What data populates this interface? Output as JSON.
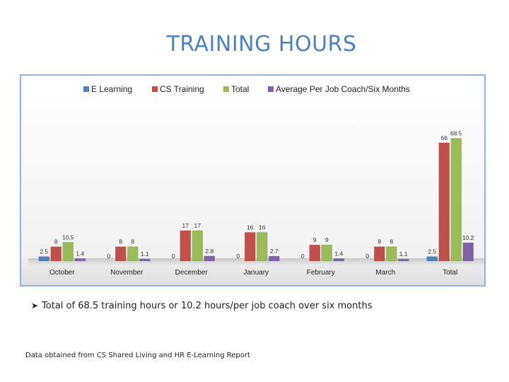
{
  "slide": {
    "title": "TRAINING HOURS",
    "bullet": "Total of 68.5 training hours or 10.2 hours/per job coach over six months",
    "footnote": "Data obtained from CS Shared Living and HR E-Learning Report"
  },
  "chart_data": {
    "type": "bar",
    "categories": [
      "October",
      "November",
      "December",
      "January",
      "February",
      "March",
      "Total"
    ],
    "series": [
      {
        "name": "E Learning",
        "color": "#4f81bd",
        "values": [
          2.5,
          0,
          0,
          0,
          0,
          0,
          2.5
        ],
        "labels": [
          "2.5",
          "0",
          "0",
          "0",
          "0",
          "0",
          "2.5"
        ]
      },
      {
        "name": "CS Training",
        "color": "#c0504d",
        "values": [
          8,
          8,
          17,
          16,
          9,
          8,
          66
        ],
        "labels": [
          "8",
          "8",
          "17",
          "16",
          "9",
          "8",
          "66"
        ]
      },
      {
        "name": "Total",
        "color": "#9bbb59",
        "values": [
          10.5,
          8,
          17,
          16,
          9,
          8,
          68.5
        ],
        "labels": [
          "10.5",
          "8",
          "17",
          "16",
          "9",
          "8",
          "68.5"
        ]
      },
      {
        "name": "Average Per Job Coach/Six Months",
        "color": "#8064a2",
        "values": [
          1.4,
          1.1,
          2.8,
          2.7,
          1.4,
          1.1,
          10.2
        ],
        "labels": [
          "1.4",
          "1.1",
          "2.8",
          "2.7",
          "1.4",
          "1.1",
          "10.2"
        ]
      }
    ],
    "ylim": [
      0,
      75
    ],
    "legend": "top",
    "grid": false,
    "title": "",
    "xlabel": "",
    "ylabel": ""
  }
}
